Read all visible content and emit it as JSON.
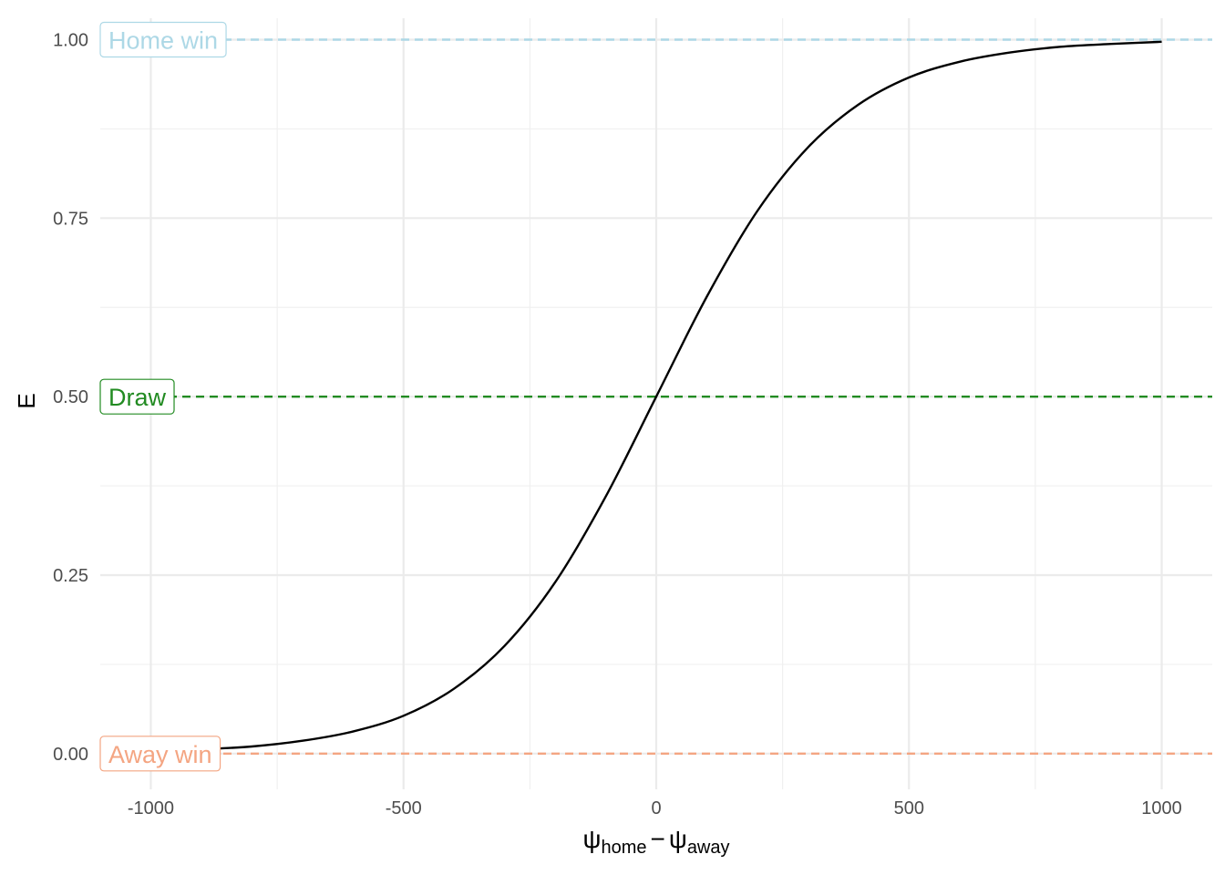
{
  "chart_data": {
    "type": "line",
    "title": "",
    "ylabel": "E",
    "xlabel": {
      "base1": "ψ",
      "sub1": "home",
      "op": "−",
      "base2": "ψ",
      "sub2": "away"
    },
    "xlim": [
      -1100,
      1100
    ],
    "ylim": [
      -0.05,
      1.03
    ],
    "x_ticks": [
      -1000,
      -500,
      0,
      500,
      1000
    ],
    "x_tick_labels": [
      "-1000",
      "-500",
      "0",
      "500",
      "1000"
    ],
    "y_ticks": [
      0,
      0.25,
      0.5,
      0.75,
      1
    ],
    "y_tick_labels": [
      "0.00",
      "0.25",
      "0.50",
      "0.75",
      "1.00"
    ],
    "grid": true,
    "series": [
      {
        "color": "#000000",
        "x": [
          -1000,
          -900,
          -800,
          -700,
          -600,
          -500,
          -400,
          -300,
          -200,
          -100,
          0,
          100,
          200,
          300,
          400,
          500,
          600,
          700,
          800,
          900,
          1000
        ],
        "y": [
          0.003,
          0.006,
          0.01,
          0.018,
          0.031,
          0.053,
          0.091,
          0.151,
          0.24,
          0.36,
          0.5,
          0.64,
          0.76,
          0.849,
          0.909,
          0.947,
          0.969,
          0.982,
          0.99,
          0.994,
          0.997
        ]
      }
    ],
    "reference_lines": [
      {
        "y": 1.0,
        "label": "Home win",
        "color": "#add8e6"
      },
      {
        "y": 0.5,
        "label": "Draw",
        "color": "#228b22"
      },
      {
        "y": 0.0,
        "label": "Away win",
        "color": "#f4a582"
      }
    ]
  }
}
